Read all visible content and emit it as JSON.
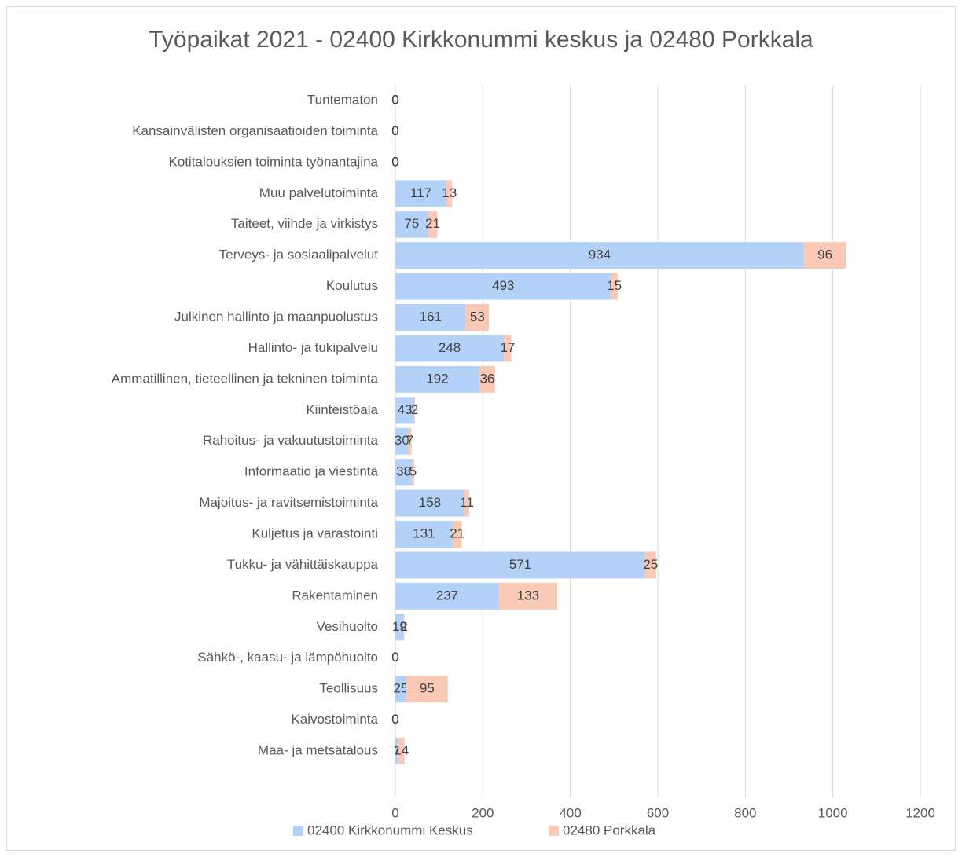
{
  "chart_data": {
    "type": "stacked_barh",
    "title": "Työpaikat 2021 - 02400 Kirkkonummi keskus ja 02480 Porkkala",
    "categories": [
      "Tuntematon",
      "Kansainvälisten organisaatioiden toiminta",
      "Kotitalouksien toiminta työnantajina",
      "Muu palvelutoiminta",
      "Taiteet, viihde ja virkistys",
      "Terveys- ja sosiaalipalvelut",
      "Koulutus",
      "Julkinen hallinto ja maanpuolustus",
      "Hallinto- ja tukipalvelu",
      "Ammatillinen, tieteellinen ja tekninen toiminta",
      "Kiinteistöala",
      "Rahoitus- ja vakuutustoiminta",
      "Informaatio ja viestintä",
      "Majoitus- ja ravitsemistoiminta",
      "Kuljetus ja varastointi",
      "Tukku- ja vähittäiskauppa",
      "Rakentaminen",
      "Vesihuolto",
      "Sähkö-, kaasu- ja lämpöhuolto",
      "Teollisuus",
      "Kaivostoiminta",
      "Maa- ja metsätalous"
    ],
    "series": [
      {
        "name": "02400 Kirkkonummi Keskus",
        "color": "#b4d2f7",
        "values": [
          0,
          0,
          0,
          117,
          75,
          934,
          493,
          161,
          248,
          192,
          43,
          30,
          38,
          158,
          131,
          571,
          237,
          19,
          0,
          25,
          0,
          7
        ]
      },
      {
        "name": "02480 Porkkala",
        "color": "#f9c9b5",
        "values": [
          0,
          0,
          0,
          13,
          21,
          96,
          15,
          53,
          17,
          36,
          2,
          7,
          5,
          11,
          21,
          25,
          133,
          2,
          0,
          95,
          0,
          14
        ]
      }
    ],
    "xlim": [
      0,
      1200
    ],
    "xticks": [
      0,
      200,
      400,
      600,
      800,
      1000,
      1200
    ],
    "grid": true,
    "legend": "bottom"
  }
}
